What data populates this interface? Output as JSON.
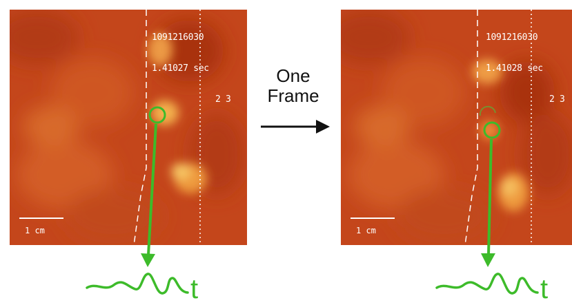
{
  "left_panel": {
    "readout_line1": "1091216030",
    "readout_line2": "1.41027 sec",
    "readout_line3": "2 3",
    "scale_label": "1 cm"
  },
  "right_panel": {
    "readout_line1": "1091216030",
    "readout_line2": "1.41028 sec",
    "readout_line3": "2 3",
    "scale_label": "1 cm"
  },
  "transition": {
    "line1": "One",
    "line2": "Frame"
  },
  "trace": {
    "left_label": "t",
    "right_label": "t"
  },
  "colors": {
    "background_map": "#c4461b",
    "marker": "#3dbb2a",
    "arrow": "#111111"
  }
}
